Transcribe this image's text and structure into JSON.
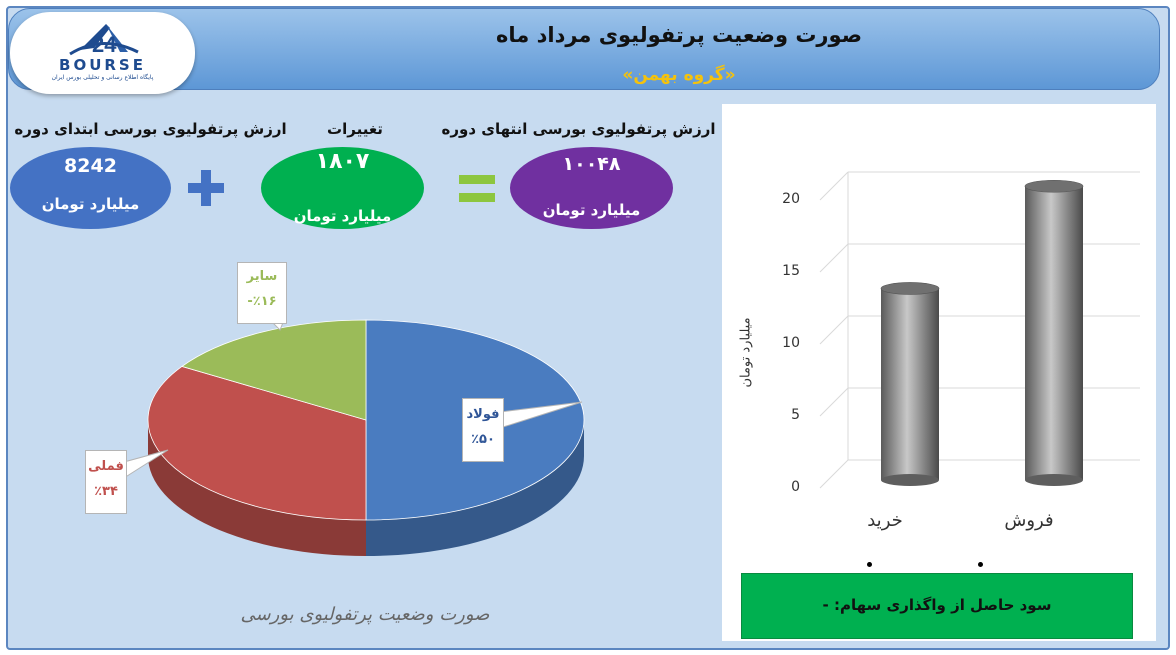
{
  "header": {
    "title": "صورت وضعیت پرتفولیوی مرداد ماه",
    "subtitle": "«گروه بهمن»"
  },
  "logo": {
    "text": "BOURSE",
    "tagline": "پایگاه اطلاع رسانی و تحلیلی بورس ایران",
    "icon": "bourse-24-logo"
  },
  "summary": {
    "start": {
      "label": "ارزش پرتفولیوی بورسی ابتدای دوره",
      "value": "8242",
      "unit": "میلیارد تومان",
      "color": "#4472c4"
    },
    "change": {
      "label": "تغییرات",
      "value": "۱۸۰۷",
      "unit": "میلیارد تومان",
      "color": "#00b050"
    },
    "end": {
      "label": "ارزش پرتفولیوی بورسی انتهای دوره",
      "value": "۱۰۰۴۸",
      "unit": "میلیارد تومان",
      "color": "#7030a0"
    },
    "plus_icon": "plus-icon",
    "equals_icon": "equals-icon"
  },
  "chart_data": [
    {
      "type": "pie",
      "title": "",
      "caption": "صورت وضعیت پرتفولیوی بورسی",
      "slices": [
        {
          "name": "فولاد",
          "value": 50,
          "label": "٪۵۰",
          "color": "#4a7cc0"
        },
        {
          "name": "فملی",
          "value": 34,
          "label": "٪۳۴",
          "color": "#c0504d"
        },
        {
          "name": "سایر",
          "value": 16,
          "label": "٪۱۶-",
          "color": "#9bbb59"
        }
      ]
    },
    {
      "type": "bar",
      "title": "",
      "categories": [
        "خرید",
        "فروش"
      ],
      "values": [
        13.3,
        20.4
      ],
      "ylabel": "میلیارد تومان",
      "xlabel": "",
      "ylim": [
        0,
        20
      ],
      "yticks": [
        0,
        5,
        10,
        15,
        20
      ],
      "grid": true,
      "color": "#808080"
    }
  ],
  "profit_note": "سود حاصل از واگذاری سهام: -"
}
